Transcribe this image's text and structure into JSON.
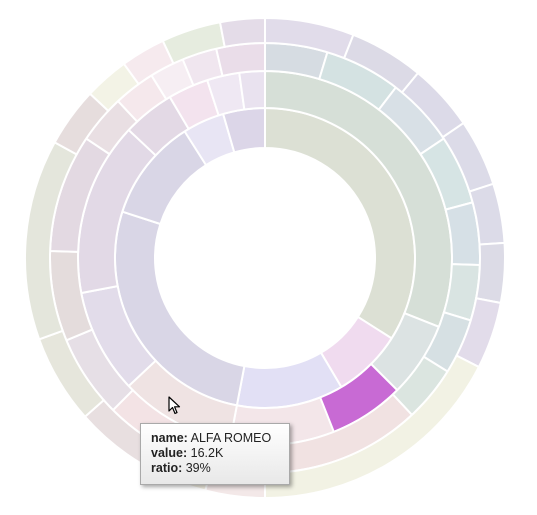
{
  "chart_data": {
    "type": "sunburst",
    "title": "",
    "rings": [
      {
        "level": 1,
        "segments": [
          {
            "value": 0.34,
            "color": "#dce0d4"
          },
          {
            "value": 0.075,
            "color": "#f0dbef"
          },
          {
            "value": 0.115,
            "color": "#e2e0f5"
          },
          {
            "value": 0.27,
            "color": "#d9d6e6"
          },
          {
            "value": 0.11,
            "color": "#d9d6e6"
          },
          {
            "value": 0.045,
            "color": "#e8e5f4"
          },
          {
            "value": 0.045,
            "color": "#dcd6e8"
          }
        ]
      },
      {
        "level": 2,
        "segments": [
          {
            "value": 0.31,
            "color": "#d6dfd7"
          },
          {
            "value": 0.065,
            "color": "#dce3e3"
          },
          {
            "value": 0.155,
            "color": "#f3e6e9",
            "highlighted_share": 0.065,
            "highlight_color": "#c86ad4"
          },
          {
            "value": 0.1,
            "color": "#efe3e3"
          },
          {
            "value": 0.09,
            "color": "#e2dcea"
          },
          {
            "value": 0.15,
            "color": "#e2d9e6"
          },
          {
            "value": 0.045,
            "color": "#e3d9e5"
          },
          {
            "value": 0.035,
            "color": "#f3e3ee"
          },
          {
            "value": 0.028,
            "color": "#efe8f3"
          },
          {
            "value": 0.022,
            "color": "#e9e2ef"
          }
        ]
      },
      {
        "level": 3,
        "segments": [
          {
            "value": 0.045,
            "color": "#d6dce2"
          },
          {
            "value": 0.055,
            "color": "#d4e2e2"
          },
          {
            "value": 0.05,
            "color": "#d8e0e6"
          },
          {
            "value": 0.05,
            "color": "#d6e4e4"
          },
          {
            "value": 0.045,
            "color": "#d6e0e6"
          },
          {
            "value": 0.04,
            "color": "#d9e4e2"
          },
          {
            "value": 0.04,
            "color": "#d6e0e3"
          },
          {
            "value": 0.04,
            "color": "#dbe5e0"
          },
          {
            "value": 0.175,
            "color": "#f1e2e2"
          },
          {
            "value": 0.06,
            "color": "#f3e3e5"
          },
          {
            "value": 0.06,
            "color": "#e6dfe6"
          },
          {
            "value": 0.065,
            "color": "#e4dcdc"
          },
          {
            "value": 0.085,
            "color": "#e3d9e2"
          },
          {
            "value": 0.035,
            "color": "#e9dfe3"
          },
          {
            "value": 0.03,
            "color": "#f5e8ec"
          },
          {
            "value": 0.025,
            "color": "#f6eef3"
          },
          {
            "value": 0.025,
            "color": "#f0e6ef"
          },
          {
            "value": 0.035,
            "color": "#eadde9"
          }
        ]
      },
      {
        "level": 4,
        "segments": [
          {
            "value": 0.06,
            "color": "#e1dcea"
          },
          {
            "value": 0.05,
            "color": "#dcdae6"
          },
          {
            "value": 0.045,
            "color": "#dcdae8"
          },
          {
            "value": 0.045,
            "color": "#dcdbe8"
          },
          {
            "value": 0.04,
            "color": "#dcdbe8"
          },
          {
            "value": 0.04,
            "color": "#dcdbe6"
          },
          {
            "value": 0.045,
            "color": "#e2dcea"
          },
          {
            "value": 0.175,
            "color": "#f2f2e4"
          },
          {
            "value": 0.04,
            "color": "#f3e8e8"
          },
          {
            "value": 0.035,
            "color": "#f3efe3"
          },
          {
            "value": 0.06,
            "color": "#e8dfe0"
          },
          {
            "value": 0.06,
            "color": "#e6e6dc"
          },
          {
            "value": 0.135,
            "color": "#e4e6dc"
          },
          {
            "value": 0.04,
            "color": "#e6dddd"
          },
          {
            "value": 0.03,
            "color": "#f3f3e6"
          },
          {
            "value": 0.03,
            "color": "#f6eaee"
          },
          {
            "value": 0.04,
            "color": "#e6ecdf"
          },
          {
            "value": 0.03,
            "color": "#e4dce8"
          }
        ]
      }
    ],
    "tooltip": {
      "name_label": "name:",
      "name": "ALFA ROMEO",
      "value_label": "value:",
      "value": "16.2K",
      "ratio_label": "ratio:",
      "ratio": "39%"
    }
  }
}
